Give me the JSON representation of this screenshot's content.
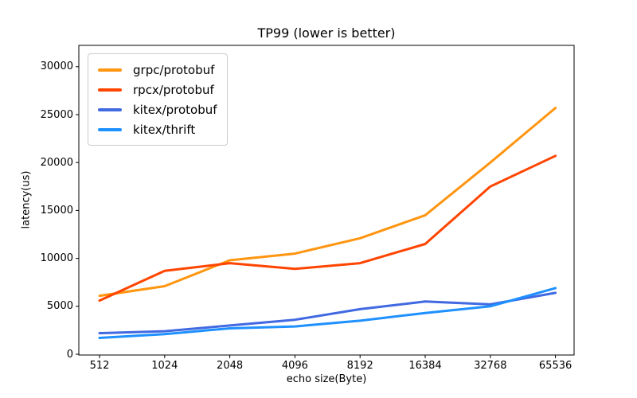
{
  "figure": {
    "background": "#ffffff",
    "axes_color": "#000000",
    "text_color": "#000000",
    "legend_border_color": "#cccccc"
  },
  "chart_data": {
    "type": "line",
    "title": "TP99 (lower is better)",
    "xlabel": "echo size(Byte)",
    "ylabel": "latency(us)",
    "categories": [
      "512",
      "1024",
      "2048",
      "4096",
      "8192",
      "16384",
      "32768",
      "65536"
    ],
    "x_scale": "categorical-log2",
    "yticks": [
      0,
      5000,
      10000,
      15000,
      20000,
      25000,
      30000
    ],
    "ylim": [
      0,
      32300
    ],
    "grid": false,
    "legend_position": "upper-left",
    "series": [
      {
        "name": "grpc/protobuf",
        "color": "#ff9510",
        "values": [
          6100,
          7100,
          9800,
          10500,
          12100,
          14500,
          20000,
          25700
        ]
      },
      {
        "name": "rpcx/protobuf",
        "color": "#ff4500",
        "values": [
          5600,
          8700,
          9500,
          8900,
          9500,
          11500,
          17500,
          20700
        ]
      },
      {
        "name": "kitex/protobuf",
        "color": "#4169e1",
        "values": [
          2200,
          2400,
          3000,
          3600,
          4700,
          5500,
          5200,
          6400
        ]
      },
      {
        "name": "kitex/thrift",
        "color": "#1e90ff",
        "values": [
          1700,
          2100,
          2700,
          2900,
          3500,
          4300,
          5000,
          6900
        ]
      }
    ]
  }
}
